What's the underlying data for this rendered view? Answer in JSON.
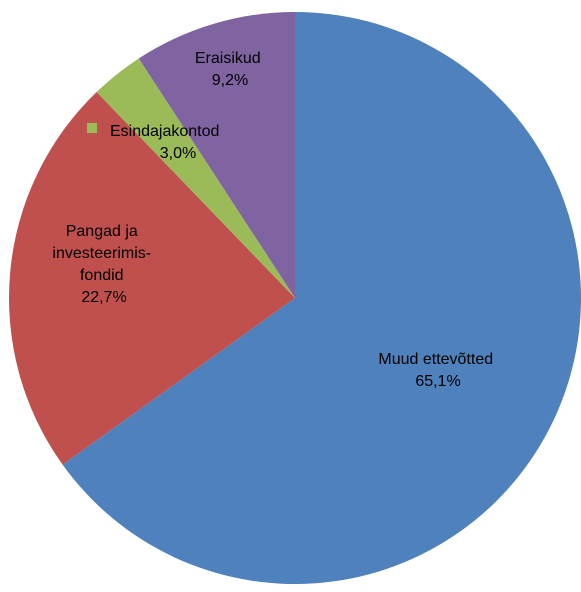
{
  "chart_data": {
    "type": "pie",
    "start_angle_deg": 0,
    "direction": "clockwise",
    "legend": "none",
    "slices": [
      {
        "label": "Muud ettevõtted",
        "value": 65.1,
        "value_text": "65,1%",
        "color": "#4F81BD"
      },
      {
        "label": "Pangad ja investeerimis-fondid",
        "label_lines": [
          "Pangad ja",
          "investeerimis-",
          "fondid"
        ],
        "value": 22.7,
        "value_text": "22,7%",
        "color": "#C0504D"
      },
      {
        "label": "Esindajakontod",
        "value": 3.0,
        "value_text": "3,0%",
        "color": "#9BBB59"
      },
      {
        "label": "Eraisikud",
        "value": 9.2,
        "value_text": "9,2%",
        "color": "#8064A2"
      }
    ]
  }
}
